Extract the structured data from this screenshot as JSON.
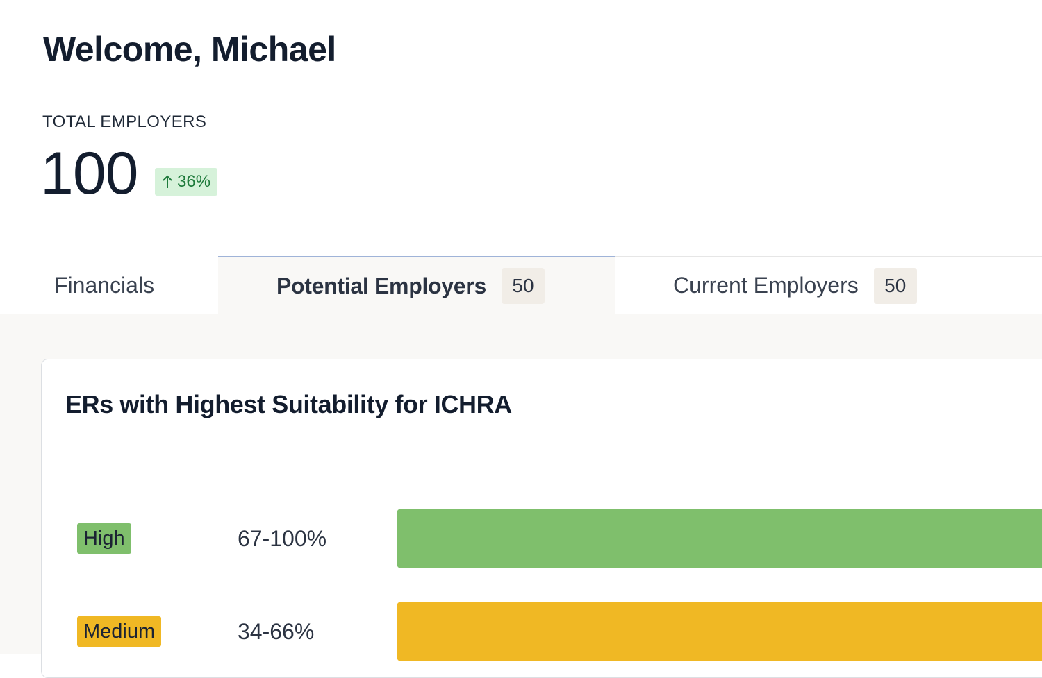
{
  "header": {
    "welcome": "Welcome, Michael"
  },
  "stat": {
    "label": "TOTAL EMPLOYERS",
    "value": "100",
    "change": "36%",
    "change_direction": "up",
    "change_color": "#1d7a3a"
  },
  "tabs": [
    {
      "label": "Financials",
      "count": null,
      "active": false
    },
    {
      "label": "Potential Employers",
      "count": "50",
      "active": true
    },
    {
      "label": "Current Employers",
      "count": "50",
      "active": false
    }
  ],
  "card": {
    "title": "ERs with Highest Suitability for ICHRA",
    "rows": [
      {
        "level": "High",
        "range": "67-100%",
        "color": "#7fbf6c"
      },
      {
        "level": "Medium",
        "range": "34-66%",
        "color": "#f0b824"
      }
    ]
  }
}
